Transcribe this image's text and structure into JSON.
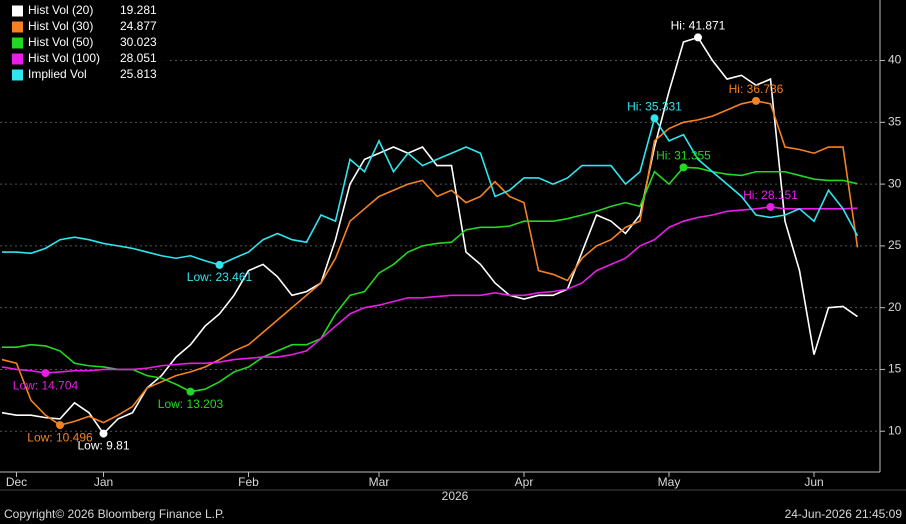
{
  "chart_data": {
    "type": "line",
    "categories": [
      null,
      "Dec",
      null,
      null,
      null,
      null,
      null,
      "Jan",
      null,
      null,
      null,
      null,
      null,
      null,
      null,
      null,
      null,
      "Feb",
      null,
      null,
      null,
      null,
      null,
      null,
      null,
      null,
      "Mar",
      null,
      null,
      null,
      null,
      null,
      null,
      null,
      null,
      null,
      "Apr",
      null,
      null,
      null,
      null,
      null,
      null,
      null,
      null,
      null,
      "May",
      null,
      null,
      null,
      null,
      null,
      null,
      null,
      null,
      null,
      "Jun",
      null,
      null,
      null
    ],
    "year_label": "2026",
    "series": [
      {
        "name": "Hist Vol (20)",
        "color": "#ffffff",
        "values": [
          11.5,
          11.3,
          11.3,
          11.1,
          11.0,
          12.3,
          11.5,
          9.81,
          11.0,
          11.5,
          13.5,
          14.5,
          16.0,
          17.0,
          18.5,
          19.5,
          21.0,
          23.0,
          23.5,
          22.5,
          21.0,
          21.3,
          22.0,
          25.5,
          30.0,
          32.0,
          32.5,
          33.0,
          32.5,
          33.0,
          31.5,
          31.5,
          24.5,
          23.5,
          22.0,
          21.0,
          20.7,
          21.0,
          21.0,
          21.5,
          24.5,
          27.5,
          27.0,
          26.0,
          27.5,
          33.0,
          37.5,
          41.5,
          41.871,
          40.0,
          38.5,
          38.8,
          38.0,
          38.5,
          27.0,
          23.0,
          16.2,
          20.0,
          20.1,
          19.281
        ]
      },
      {
        "name": "Hist Vol (30)",
        "color": "#f58220",
        "values": [
          15.8,
          15.5,
          12.5,
          11.3,
          10.496,
          10.8,
          11.2,
          10.7,
          11.3,
          12.0,
          13.5,
          14.0,
          14.5,
          14.8,
          15.2,
          15.8,
          16.5,
          17.0,
          18.0,
          19.0,
          20.0,
          21.0,
          22.0,
          24.0,
          27.0,
          28.0,
          29.0,
          29.5,
          30.0,
          30.3,
          29.0,
          29.5,
          28.5,
          29.0,
          30.2,
          29.0,
          28.5,
          23.0,
          22.7,
          22.2,
          24.0,
          25.0,
          25.5,
          26.5,
          27.0,
          33.5,
          34.5,
          35.0,
          35.2,
          35.5,
          36.0,
          36.5,
          36.736,
          36.5,
          33.0,
          32.8,
          32.5,
          33.0,
          33.0,
          24.877
        ]
      },
      {
        "name": "Hist Vol (50)",
        "color": "#22d822",
        "values": [
          16.8,
          16.8,
          17.0,
          16.9,
          16.5,
          15.5,
          15.3,
          15.2,
          15.0,
          15.0,
          14.5,
          14.3,
          13.8,
          13.203,
          13.4,
          14.0,
          14.8,
          15.2,
          16.0,
          16.5,
          17.0,
          17.0,
          17.5,
          19.5,
          21.0,
          21.3,
          22.8,
          23.5,
          24.5,
          25.0,
          25.2,
          25.3,
          26.3,
          26.5,
          26.5,
          26.6,
          27.0,
          27.0,
          27.0,
          27.2,
          27.5,
          27.8,
          28.2,
          28.5,
          28.2,
          31.0,
          30.0,
          31.355,
          31.3,
          31.0,
          30.8,
          30.7,
          31.0,
          31.0,
          31.0,
          30.7,
          30.4,
          30.3,
          30.3,
          30.023
        ]
      },
      {
        "name": "Hist Vol (100)",
        "color": "#e81ee8",
        "values": [
          15.2,
          15.0,
          14.9,
          14.704,
          14.8,
          14.9,
          14.9,
          15.0,
          15.0,
          15.0,
          15.1,
          15.3,
          15.4,
          15.5,
          15.5,
          15.6,
          15.8,
          15.9,
          16.0,
          16.0,
          16.2,
          16.5,
          17.5,
          18.5,
          19.5,
          20.0,
          20.2,
          20.5,
          20.8,
          20.8,
          20.9,
          21.0,
          21.0,
          21.0,
          21.2,
          21.0,
          21.0,
          21.2,
          21.3,
          21.5,
          22.0,
          23.0,
          23.5,
          24.0,
          25.0,
          25.5,
          26.5,
          27.0,
          27.3,
          27.5,
          27.8,
          27.9,
          28.0,
          28.151,
          28.0,
          28.0,
          28.0,
          28.0,
          28.0,
          28.051
        ]
      },
      {
        "name": "Implied Vol",
        "color": "#2ee6ee",
        "values": [
          24.5,
          24.5,
          24.4,
          24.8,
          25.5,
          25.7,
          25.5,
          25.2,
          25.0,
          24.8,
          24.5,
          24.2,
          24.0,
          24.2,
          23.8,
          23.461,
          24.0,
          24.5,
          25.5,
          26.0,
          25.5,
          25.3,
          27.5,
          27.0,
          32.0,
          31.0,
          33.5,
          31.0,
          32.5,
          31.5,
          32.0,
          32.5,
          33.0,
          32.5,
          29.0,
          29.5,
          30.5,
          30.5,
          30.0,
          30.5,
          31.5,
          31.5,
          31.5,
          30.0,
          31.0,
          35.331,
          33.5,
          34.0,
          32.0,
          31.0,
          30.0,
          29.0,
          27.5,
          27.3,
          27.5,
          28.0,
          27.0,
          29.5,
          28.0,
          25.813
        ]
      }
    ],
    "annotations": [
      {
        "label": "Hi: 41.871",
        "series": 0,
        "index": 48
      },
      {
        "label": "Low: 9.81",
        "series": 0,
        "index": 7
      },
      {
        "label": "Hi: 36.736",
        "series": 1,
        "index": 52
      },
      {
        "label": "Low: 10.496",
        "series": 1,
        "index": 4
      },
      {
        "label": "Hi: 31.355",
        "series": 2,
        "index": 47
      },
      {
        "label": "Low: 13.203",
        "series": 2,
        "index": 13
      },
      {
        "label": "Hi: 28.151",
        "series": 3,
        "index": 53
      },
      {
        "label": "Low: 14.704",
        "series": 3,
        "index": 3
      },
      {
        "label": "Hi: 35.331",
        "series": 4,
        "index": 45
      },
      {
        "label": "Low: 23.461",
        "series": 4,
        "index": 15
      }
    ],
    "ylim": [
      6.7,
      44.9
    ],
    "yticks": [
      10,
      15,
      20,
      25,
      30,
      35,
      40
    ],
    "grid": true,
    "footer_left": "Copyright© 2026 Bloomberg Finance L.P.",
    "footer_right": "24-Jun-2026 21:45:09"
  }
}
